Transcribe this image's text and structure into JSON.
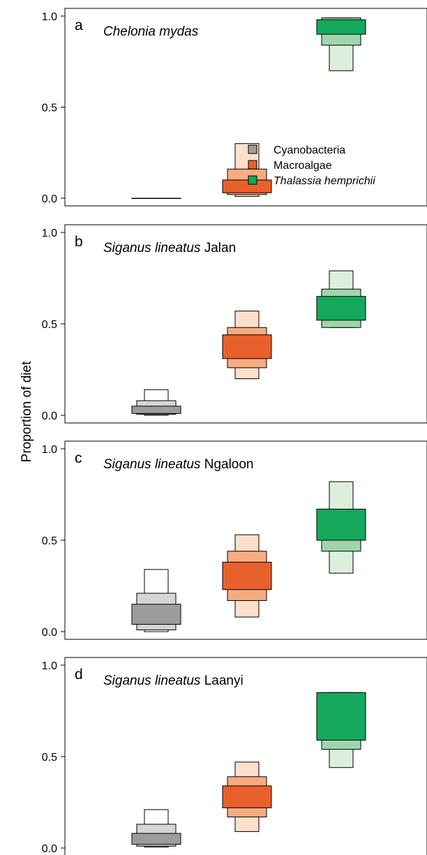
{
  "y_axis_label": "Proportion of diet",
  "legend": {
    "entries": [
      {
        "label": "Cyanobacteria",
        "italic": false,
        "color": "#9b9c9e"
      },
      {
        "label": "Macroalgae",
        "italic": false,
        "color": "#e8602c"
      },
      {
        "label": "Thalassia hemprichii",
        "italic": true,
        "color": "#14a85c"
      }
    ]
  },
  "chart_data": [
    {
      "type": "boxplot",
      "panel_letter": "a",
      "title_parts": [
        {
          "text": "Chelonia mydas",
          "italic": true
        }
      ],
      "y_ticks": [
        "0.0",
        "0.5",
        "1.0"
      ],
      "ylim": [
        0,
        1
      ],
      "legend_shown": true,
      "series": [
        {
          "name": "Cyanobacteria",
          "colors": [
            "#ffffff",
            "#d4d5d6",
            "#9b9c9e"
          ],
          "intervals": [
            [
              0,
              0
            ],
            [
              0,
              0
            ],
            [
              0,
              0
            ]
          ]
        },
        {
          "name": "Macroalgae",
          "colors": [
            "#fde0cb",
            "#f7ac80",
            "#e8602c"
          ],
          "intervals": [
            [
              0.01,
              0.3
            ],
            [
              0.02,
              0.16
            ],
            [
              0.03,
              0.1
            ]
          ]
        },
        {
          "name": "Thalassia hemprichii",
          "colors": [
            "#dcefdd",
            "#a0d5ab",
            "#14a85c"
          ],
          "intervals": [
            [
              0.7,
              0.99
            ],
            [
              0.84,
              0.99
            ],
            [
              0.9,
              0.98
            ]
          ]
        }
      ]
    },
    {
      "type": "boxplot",
      "panel_letter": "b",
      "title_parts": [
        {
          "text": "Siganus lineatus",
          "italic": true
        },
        {
          "text": " Jalan",
          "italic": false
        }
      ],
      "y_ticks": [
        "0.0",
        "0.5",
        "1.0"
      ],
      "ylim": [
        0,
        1
      ],
      "legend_shown": false,
      "series": [
        {
          "name": "Cyanobacteria",
          "colors": [
            "#ffffff",
            "#d4d5d6",
            "#9b9c9e"
          ],
          "intervals": [
            [
              0.0,
              0.14
            ],
            [
              0.005,
              0.08
            ],
            [
              0.01,
              0.05
            ]
          ]
        },
        {
          "name": "Macroalgae",
          "colors": [
            "#fde0cb",
            "#f7ac80",
            "#e8602c"
          ],
          "intervals": [
            [
              0.2,
              0.57
            ],
            [
              0.26,
              0.48
            ],
            [
              0.31,
              0.44
            ]
          ]
        },
        {
          "name": "Thalassia hemprichii",
          "colors": [
            "#dcefdd",
            "#a0d5ab",
            "#14a85c"
          ],
          "intervals": [
            [
              0.48,
              0.79
            ],
            [
              0.48,
              0.69
            ],
            [
              0.52,
              0.65
            ]
          ]
        }
      ]
    },
    {
      "type": "boxplot",
      "panel_letter": "c",
      "title_parts": [
        {
          "text": "Siganus lineatus",
          "italic": true
        },
        {
          "text": " Ngaloon",
          "italic": false
        }
      ],
      "y_ticks": [
        "0.0",
        "0.5",
        "1.0"
      ],
      "ylim": [
        0,
        1
      ],
      "legend_shown": false,
      "series": [
        {
          "name": "Cyanobacteria",
          "colors": [
            "#ffffff",
            "#d4d5d6",
            "#9b9c9e"
          ],
          "intervals": [
            [
              0.0,
              0.34
            ],
            [
              0.01,
              0.21
            ],
            [
              0.04,
              0.15
            ]
          ]
        },
        {
          "name": "Macroalgae",
          "colors": [
            "#fde0cb",
            "#f7ac80",
            "#e8602c"
          ],
          "intervals": [
            [
              0.08,
              0.53
            ],
            [
              0.17,
              0.44
            ],
            [
              0.23,
              0.38
            ]
          ]
        },
        {
          "name": "Thalassia hemprichii",
          "colors": [
            "#dcefdd",
            "#a0d5ab",
            "#14a85c"
          ],
          "intervals": [
            [
              0.32,
              0.82
            ],
            [
              0.44,
              0.67
            ],
            [
              0.5,
              0.67
            ]
          ]
        }
      ]
    },
    {
      "type": "boxplot",
      "panel_letter": "d",
      "title_parts": [
        {
          "text": "Siganus lineatus",
          "italic": true
        },
        {
          "text": " Laanyi",
          "italic": false
        }
      ],
      "y_ticks": [
        "0.0",
        "0.5",
        "1.0"
      ],
      "ylim": [
        0,
        1
      ],
      "legend_shown": false,
      "series": [
        {
          "name": "Cyanobacteria",
          "colors": [
            "#ffffff",
            "#d4d5d6",
            "#9b9c9e"
          ],
          "intervals": [
            [
              0.005,
              0.21
            ],
            [
              0.01,
              0.13
            ],
            [
              0.02,
              0.08
            ]
          ]
        },
        {
          "name": "Macroalgae",
          "colors": [
            "#fde0cb",
            "#f7ac80",
            "#e8602c"
          ],
          "intervals": [
            [
              0.09,
              0.47
            ],
            [
              0.17,
              0.39
            ],
            [
              0.22,
              0.34
            ]
          ]
        },
        {
          "name": "Thalassia hemprichii",
          "colors": [
            "#dcefdd",
            "#a0d5ab",
            "#14a85c"
          ],
          "intervals": [
            [
              0.44,
              0.85
            ],
            [
              0.54,
              0.85
            ],
            [
              0.59,
              0.85
            ]
          ]
        }
      ]
    }
  ]
}
